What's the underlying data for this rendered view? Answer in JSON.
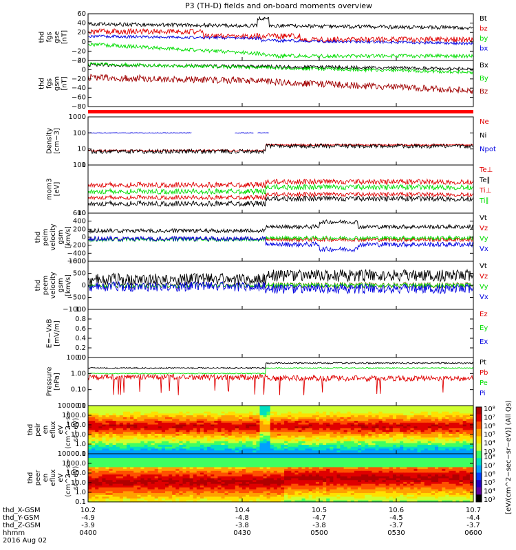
{
  "title": "P3 (TH-D) fields and on-board moments overview",
  "colors": {
    "black": "#000000",
    "red": "#e00000",
    "blue": "#0000e0",
    "green": "#00dd00",
    "darkred": "#a00000"
  },
  "chart_data": {
    "type": "line",
    "x_range": [
      10.2,
      10.7
    ],
    "x_tick_rows": [
      {
        "label": "thd_X-GSM",
        "values": [
          "10.2",
          "10.4",
          "10.5",
          "10.6",
          "10.7"
        ]
      },
      {
        "label": "thd_Y-GSM",
        "values": [
          "-4.9",
          "-4.8",
          "-4.7",
          "-4.5",
          "-4.4"
        ]
      },
      {
        "label": "thd_Z-GSM",
        "values": [
          "-3.9",
          "-3.8",
          "-3.8",
          "-3.7",
          "-3.7"
        ]
      },
      {
        "label": "hhmm",
        "values": [
          "0400",
          "0430",
          "0500",
          "0530",
          "0600"
        ]
      }
    ],
    "date_label": "2016 Aug 02",
    "panels": [
      {
        "id": "fgs_gse",
        "ylabel": [
          "thd",
          "fgs",
          "gse",
          "[nT]"
        ],
        "yscale": "linear",
        "ylim": [
          -40,
          60
        ],
        "yticks": [
          "60",
          "40",
          "20",
          "0",
          "−20",
          "−40"
        ],
        "series": [
          {
            "name": "Bt",
            "color": "black"
          },
          {
            "name": "bz",
            "color": "red"
          },
          {
            "name": "by",
            "color": "green"
          },
          {
            "name": "bx",
            "color": "blue"
          }
        ]
      },
      {
        "id": "fgs_gsm",
        "ylabel": [
          "thd",
          "fgs",
          "gsm",
          "[nT]"
        ],
        "yscale": "linear",
        "ylim": [
          -90,
          20
        ],
        "yticks": [
          "20",
          "0",
          "−20",
          "−40",
          "−60",
          "−80"
        ],
        "series": [
          {
            "name": "Bx",
            "color": "black"
          },
          {
            "name": "By",
            "color": "green"
          },
          {
            "name": "Bz",
            "color": "darkred"
          }
        ]
      },
      {
        "id": "density",
        "ylabel": [
          "Density",
          "[cm−3]"
        ],
        "yscale": "log",
        "ylim": [
          1,
          1000
        ],
        "yticks": [
          "1000",
          "100",
          "10",
          "1"
        ],
        "series": [
          {
            "name": "Ne",
            "color": "red"
          },
          {
            "name": "Ni",
            "color": "black"
          },
          {
            "name": "Npot",
            "color": "blue"
          }
        ]
      },
      {
        "id": "temp",
        "ylabel": [
          "mom3",
          "[eV]"
        ],
        "yscale": "log",
        "ylim": [
          10,
          1000
        ],
        "yticks": [
          "100",
          "10"
        ],
        "series": [
          {
            "name": "Te⊥",
            "color": "red"
          },
          {
            "name": "Te∥",
            "color": "black"
          },
          {
            "name": "Ti⊥",
            "color": "red"
          },
          {
            "name": "Ti∥",
            "color": "green"
          }
        ]
      },
      {
        "id": "peim_vel",
        "ylabel": [
          "thd",
          "peim",
          "velocity",
          "gsm",
          "[km/s]"
        ],
        "yscale": "linear",
        "ylim": [
          -600,
          600
        ],
        "yticks": [
          "600",
          "400",
          "200",
          "0",
          "−200",
          "−400",
          "−600"
        ],
        "series": [
          {
            "name": "Vt",
            "color": "black"
          },
          {
            "name": "Vz",
            "color": "red"
          },
          {
            "name": "Vy",
            "color": "green"
          },
          {
            "name": "Vx",
            "color": "blue"
          }
        ]
      },
      {
        "id": "peem_vel",
        "ylabel": [
          "thd",
          "peem",
          "velocity",
          "gsm",
          "[km/s]"
        ],
        "yscale": "linear",
        "ylim": [
          -1000,
          1000
        ],
        "yticks": [
          "1000",
          "500",
          "0",
          "−500",
          "−1000"
        ],
        "series": [
          {
            "name": "Vt",
            "color": "black"
          },
          {
            "name": "Vz",
            "color": "red"
          },
          {
            "name": "Vy",
            "color": "green"
          },
          {
            "name": "Vx",
            "color": "blue"
          }
        ]
      },
      {
        "id": "efield",
        "ylabel": [
          "E=−VxB",
          "[mV/m]"
        ],
        "yscale": "linear",
        "ylim": [
          0,
          1
        ],
        "yticks": [
          "1.0",
          "0.8",
          "0.6",
          "0.4",
          "0.2",
          "0.0"
        ],
        "series": [
          {
            "name": "Ez",
            "color": "red"
          },
          {
            "name": "Ey",
            "color": "green"
          },
          {
            "name": "Ex",
            "color": "blue"
          }
        ]
      },
      {
        "id": "pressure",
        "ylabel": [
          "Pressure",
          "[nPa]"
        ],
        "yscale": "log",
        "ylim": [
          0.01,
          10
        ],
        "yticks": [
          "10.00",
          "1.00",
          "0.10",
          "0.01"
        ],
        "series": [
          {
            "name": "Pt",
            "color": "black"
          },
          {
            "name": "Pb",
            "color": "red"
          },
          {
            "name": "Pe",
            "color": "green"
          },
          {
            "name": "Pi",
            "color": "blue"
          }
        ]
      },
      {
        "id": "peir_spec",
        "ylabel": [
          "thd",
          "peir",
          "en",
          "eflux",
          "eV",
          "(cm^2−s−",
          "sr−eV)"
        ],
        "yscale": "log",
        "ylim": [
          0.1,
          10000
        ],
        "yticks": [
          "10000.0",
          "1000.0",
          "100.0",
          "10.0",
          "1.0",
          "0.1"
        ]
      },
      {
        "id": "peer_spec",
        "ylabel": [
          "thd",
          "peer",
          "en",
          "eflux",
          "eV",
          "(cm^2−s−",
          "sr−eV)"
        ],
        "yscale": "log",
        "ylim": [
          0.1,
          10000
        ],
        "yticks": [
          "10000.0",
          "1000.0",
          "100.0",
          "10.0",
          "1.0",
          "0.1"
        ]
      }
    ],
    "colorbar": {
      "ticks": [
        "10⁸",
        "10⁷",
        "10⁶",
        "10⁵",
        "10⁴",
        "10³"
      ],
      "label": "[eV/(cm^2−sec−sr−eV)] (All Qs)"
    }
  }
}
